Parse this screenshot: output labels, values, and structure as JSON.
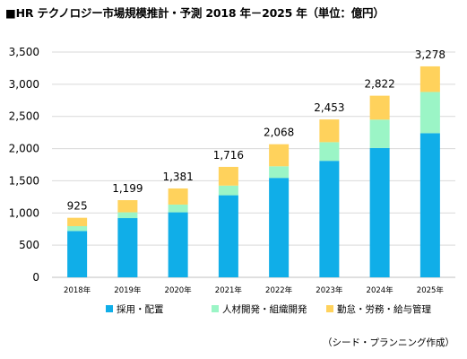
{
  "title": "■HR テクノロジー市場規模推計・予測 2018 年－2025 年（単位：億円）",
  "source": "（シード・プランニング作成）",
  "colors": {
    "recruit": "#10aee8",
    "talent": "#9bf5c6",
    "attendance": "#ffd25c",
    "gridline": "#d9d9d9",
    "axis": "#bfbfbf"
  },
  "chart_data": {
    "type": "bar",
    "stacked": true,
    "title": "HR テクノロジー市場規模推計・予測 2018 年－2025 年（単位：億円）",
    "categories": [
      "2018年",
      "2019年",
      "2020年",
      "2021年",
      "2022年",
      "2023年",
      "2024年",
      "2025年"
    ],
    "series": [
      {
        "name": "採用・配置",
        "color": "#10aee8",
        "values": [
          720,
          920,
          1010,
          1275,
          1545,
          1810,
          2010,
          2240
        ]
      },
      {
        "name": "人材開発・組織開発",
        "color": "#9bf5c6",
        "values": [
          75,
          90,
          120,
          150,
          180,
          290,
          440,
          640
        ]
      },
      {
        "name": "勤怠・労務・給与管理",
        "color": "#ffd25c",
        "values": [
          130,
          189,
          251,
          291,
          343,
          353,
          372,
          398
        ]
      }
    ],
    "totals": [
      925,
      1199,
      1381,
      1716,
      2068,
      2453,
      2822,
      3278
    ],
    "total_labels": [
      "925",
      "1,199",
      "1,381",
      "1,716",
      "2,068",
      "2,453",
      "2,822",
      "3,278"
    ],
    "yticks": [
      "0",
      "500",
      "1,000",
      "1,500",
      "2,000",
      "2,500",
      "3,000",
      "3,500"
    ],
    "ylim": [
      0,
      3500
    ],
    "grid": true,
    "legend_position": "bottom"
  }
}
